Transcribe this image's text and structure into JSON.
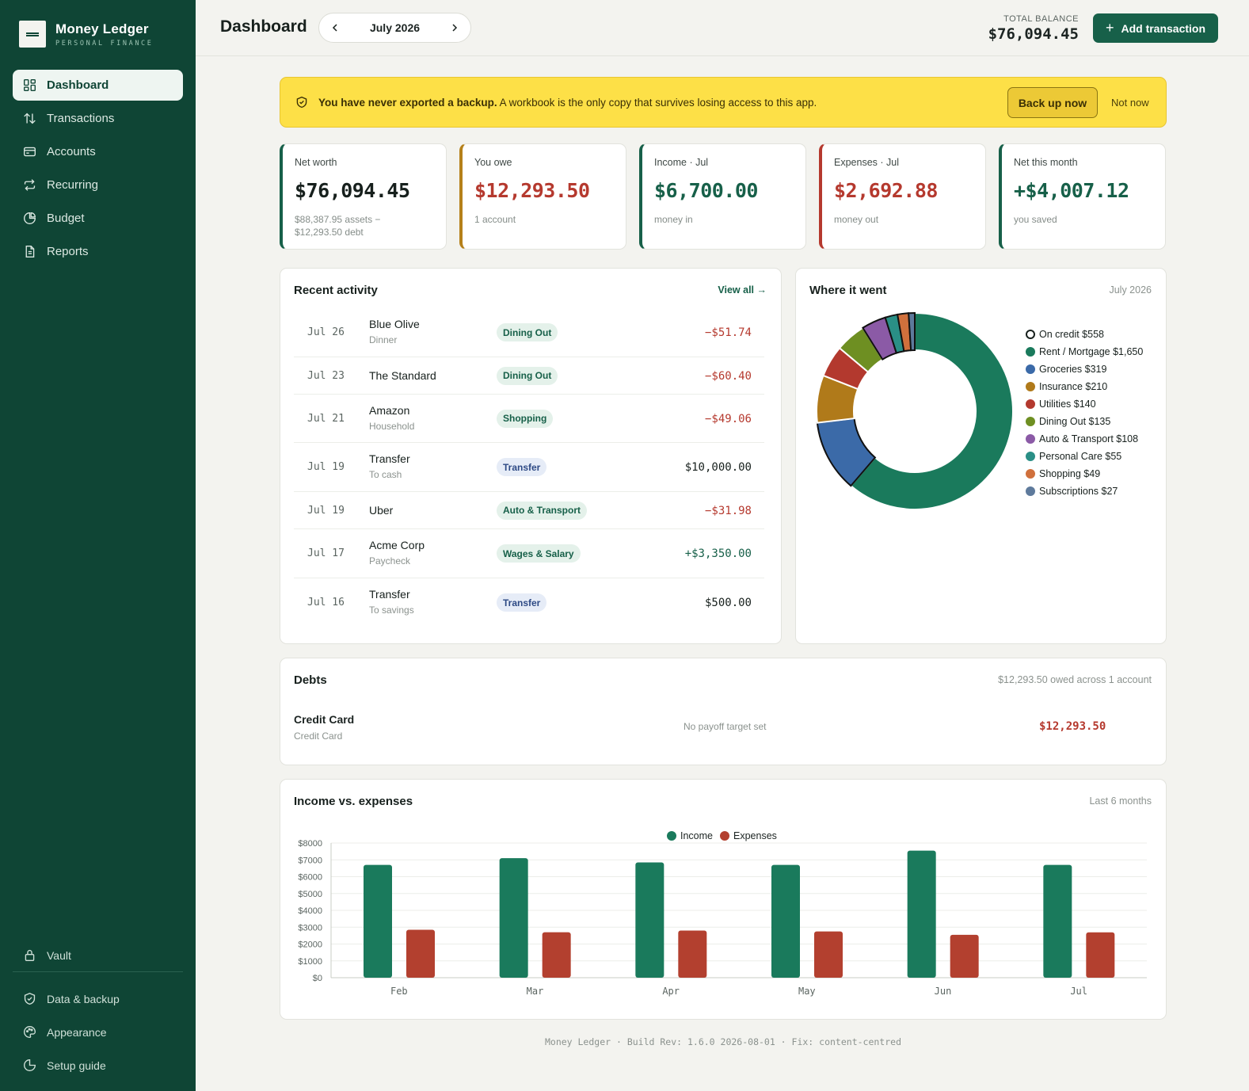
{
  "brand": {
    "name": "Money Ledger",
    "subtitle": "PERSONAL FINANCE"
  },
  "nav": {
    "items": [
      {
        "label": "Dashboard",
        "icon": "dashboard-icon",
        "active": true
      },
      {
        "label": "Transactions",
        "icon": "arrows-updown-icon"
      },
      {
        "label": "Accounts",
        "icon": "card-icon"
      },
      {
        "label": "Recurring",
        "icon": "repeat-icon"
      },
      {
        "label": "Budget",
        "icon": "pie-icon"
      },
      {
        "label": "Reports",
        "icon": "document-icon"
      }
    ],
    "bottom": [
      {
        "label": "Vault",
        "icon": "lock-icon"
      },
      {
        "label": "Data & backup",
        "icon": "shield-icon"
      },
      {
        "label": "Appearance",
        "icon": "palette-icon"
      },
      {
        "label": "Setup guide",
        "icon": "guide-icon"
      }
    ]
  },
  "header": {
    "title": "Dashboard",
    "month": "July 2026",
    "total_label": "TOTAL BALANCE",
    "total_value": "$76,094.45",
    "add_label": "Add transaction"
  },
  "banner": {
    "bold": "You have never exported a backup.",
    "text": " A workbook is the only copy that survives losing access to this app.",
    "primary": "Back up now",
    "secondary": "Not now"
  },
  "stats": [
    {
      "label": "Net worth",
      "value": "$76,094.45",
      "sub": "$88,387.95 assets − $12,293.50 debt",
      "color": "#176049",
      "value_color": "#17201d"
    },
    {
      "label": "You owe",
      "value": "$12,293.50",
      "sub": "1 account",
      "color": "#b5801a",
      "value_color": "#b5392e"
    },
    {
      "label": "Income · Jul",
      "value": "$6,700.00",
      "sub": "money in",
      "color": "#176049",
      "value_color": "#176049"
    },
    {
      "label": "Expenses · Jul",
      "value": "$2,692.88",
      "sub": "money out",
      "color": "#b5392e",
      "value_color": "#b5392e"
    },
    {
      "label": "Net this month",
      "value": "+$4,007.12",
      "sub": "you saved",
      "color": "#176049",
      "value_color": "#176049"
    }
  ],
  "activity": {
    "title": "Recent activity",
    "view_all": "View all →",
    "rows": [
      {
        "date": "Jul 26",
        "name": "Blue Olive",
        "sub": "Dinner",
        "tag": "Dining Out",
        "tag_style": "green",
        "amount": "−$51.74",
        "kind": "neg"
      },
      {
        "date": "Jul 23",
        "name": "The Standard",
        "sub": "",
        "tag": "Dining Out",
        "tag_style": "green",
        "amount": "−$60.40",
        "kind": "neg"
      },
      {
        "date": "Jul 21",
        "name": "Amazon",
        "sub": "Household",
        "tag": "Shopping",
        "tag_style": "green",
        "amount": "−$49.06",
        "kind": "neg"
      },
      {
        "date": "Jul 19",
        "name": "Transfer",
        "sub": "To cash",
        "tag": "Transfer",
        "tag_style": "blue",
        "amount": "$10,000.00",
        "kind": "neu"
      },
      {
        "date": "Jul 19",
        "name": "Uber",
        "sub": "",
        "tag": "Auto & Transport",
        "tag_style": "green",
        "amount": "−$31.98",
        "kind": "neg"
      },
      {
        "date": "Jul 17",
        "name": "Acme Corp",
        "sub": "Paycheck",
        "tag": "Wages & Salary",
        "tag_style": "green",
        "amount": "+$3,350.00",
        "kind": "pos"
      },
      {
        "date": "Jul 16",
        "name": "Transfer",
        "sub": "To savings",
        "tag": "Transfer",
        "tag_style": "blue",
        "amount": "$500.00",
        "kind": "neu"
      }
    ]
  },
  "where": {
    "title": "Where it went",
    "period": "July 2026",
    "on_credit": "On credit  $558",
    "items": [
      {
        "label": "Rent / Mortgage  $1,650",
        "value": 1650,
        "color": "#1a7a5c",
        "credit": false
      },
      {
        "label": "Groceries  $319",
        "value": 319,
        "color": "#3b6aa8",
        "credit": true
      },
      {
        "label": "Insurance  $210",
        "value": 210,
        "color": "#b07a1a",
        "credit": false
      },
      {
        "label": "Utilities  $140",
        "value": 140,
        "color": "#b3392e",
        "credit": false
      },
      {
        "label": "Dining Out  $135",
        "value": 135,
        "color": "#6e8f22",
        "credit": false
      },
      {
        "label": "Auto & Transport  $108",
        "value": 108,
        "color": "#8b5aa6",
        "credit": true
      },
      {
        "label": "Personal Care  $55",
        "value": 55,
        "color": "#2a8f86",
        "credit": true
      },
      {
        "label": "Shopping  $49",
        "value": 49,
        "color": "#d0703c",
        "credit": true
      },
      {
        "label": "Subscriptions  $27",
        "value": 27,
        "color": "#5e7a9c",
        "credit": true
      }
    ]
  },
  "debts": {
    "title": "Debts",
    "summary": "$12,293.50 owed across 1 account",
    "items": [
      {
        "name": "Credit Card",
        "sub": "Credit Card",
        "target": "No payoff target set",
        "amount": "$12,293.50"
      }
    ]
  },
  "income_chart": {
    "title": "Income vs. expenses",
    "period": "Last 6 months"
  },
  "chart_data": {
    "type": "bar",
    "categories": [
      "Feb",
      "Mar",
      "Apr",
      "May",
      "Jun",
      "Jul"
    ],
    "series": [
      {
        "name": "Income",
        "values": [
          6700,
          7100,
          6850,
          6700,
          7550,
          6700
        ],
        "color": "#1a7a5c"
      },
      {
        "name": "Expenses",
        "values": [
          2850,
          2700,
          2800,
          2750,
          2550,
          2692.88
        ],
        "color": "#b3402f"
      }
    ],
    "ylim": [
      0,
      8000
    ],
    "yticks": [
      "$0",
      "$1000",
      "$2000",
      "$3000",
      "$4000",
      "$5000",
      "$6000",
      "$7000",
      "$8000"
    ],
    "legend": "top-center",
    "grid": true
  },
  "footer": "Money Ledger · Build Rev: 1.6.0 2026-08-01 · Fix: content-centred"
}
